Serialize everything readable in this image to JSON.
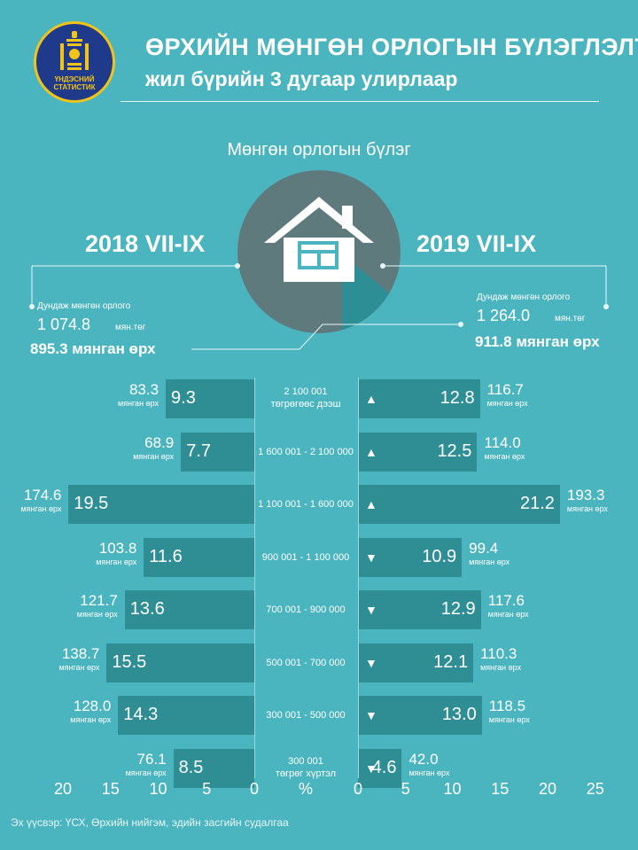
{
  "header": {
    "logo_text_line1": "ҮНДЭСНИЙ",
    "logo_text_line2": "СТАТИСТИК",
    "title_line1": "ӨРХИЙН МӨНГӨН ОРЛОГЫН БҮЛЭГЛЭЛТ,",
    "title_line2": "жил бүрийн 3 дугаар улирлаар"
  },
  "subtitle": "Мөнгөн орлогын бүлэг",
  "left_summary": {
    "year": "2018 VII-IX",
    "avg_label": "Дундаж мөнгөн орлого",
    "avg_value": "1 074.8",
    "avg_unit": "мян.төг",
    "households": "895.3 мянган өрх"
  },
  "right_summary": {
    "year": "2019 VII-IX",
    "avg_label": "Дундаж мөнгөн орлого",
    "avg_value": "1 264.0",
    "avg_unit": "мян.төг",
    "households": "911.8 мянган өрх"
  },
  "unit_label": "мянган өрх",
  "up_arrow": "▲",
  "down_arrow": "▼",
  "percent_label": "%",
  "source": "Эх үүсвэр: ҮСХ, Өрхийн нийгэм, эдийн засгийн судалгаа",
  "colors": {
    "background": "#4bb5bf",
    "bar": "#2e8e94",
    "logo_bg": "#1f3a8a",
    "logo_ring": "#f2c318"
  },
  "chart_data": {
    "type": "bar",
    "orientation": "horizontal-butterfly",
    "categories": [
      "2 100 001 төгрөгөөс дээш",
      "1 600 001 - 2 100 000",
      "1 100 001 - 1 600 000",
      "900 001 - 1 100 000",
      "700 001 - 900 000",
      "500 001 - 700 000",
      "300 001 - 500 000",
      "300 001 төгрөг хүртэл"
    ],
    "category_lines": [
      [
        "2 100 001",
        "төгрөгөөс дээш"
      ],
      [
        "1 600 001 - 2 100 000"
      ],
      [
        "1 100 001 - 1 600 000"
      ],
      [
        "900 001 - 1 100 000"
      ],
      [
        "700 001 - 900 000"
      ],
      [
        "500 001 - 700 000"
      ],
      [
        "300 001 - 500 000"
      ],
      [
        "300 001",
        "төгрөг хүртэл"
      ]
    ],
    "series": [
      {
        "name": "2018 VII-IX",
        "percent": [
          9.3,
          7.7,
          19.5,
          11.6,
          13.6,
          15.5,
          14.3,
          8.5
        ],
        "percent_labels": [
          "9.3",
          "7.7",
          "19.5",
          "11.6",
          "13.6",
          "15.5",
          "14.3",
          "8.5"
        ],
        "households": [
          83.3,
          68.9,
          174.6,
          103.8,
          121.7,
          138.7,
          128.0,
          76.1
        ],
        "household_labels": [
          "83.3",
          "68.9",
          "174.6",
          "103.8",
          "121.7",
          "138.7",
          "128.0",
          "76.1"
        ]
      },
      {
        "name": "2019 VII-IX",
        "percent": [
          12.8,
          12.5,
          21.2,
          10.9,
          12.9,
          12.1,
          13.0,
          4.6
        ],
        "percent_labels": [
          "12.8",
          "12.5",
          "21.2",
          "10.9",
          "12.9",
          "12.1",
          "13.0",
          "4.6"
        ],
        "households": [
          116.7,
          114.0,
          193.3,
          99.4,
          117.6,
          110.3,
          118.5,
          42.0
        ],
        "household_labels": [
          "116.7",
          "114.0",
          "193.3",
          "99.4",
          "117.6",
          "110.3",
          "118.5",
          "42.0"
        ],
        "change": [
          "up",
          "up",
          "up",
          "down",
          "down",
          "down",
          "down",
          "down"
        ]
      }
    ],
    "left_axis": {
      "ticks": [
        "20",
        "15",
        "10",
        "5",
        "0"
      ],
      "range": [
        0,
        20
      ]
    },
    "right_axis": {
      "ticks": [
        "0",
        "5",
        "10",
        "15",
        "20",
        "25"
      ],
      "range": [
        0,
        25
      ]
    },
    "xlabel": "%"
  }
}
